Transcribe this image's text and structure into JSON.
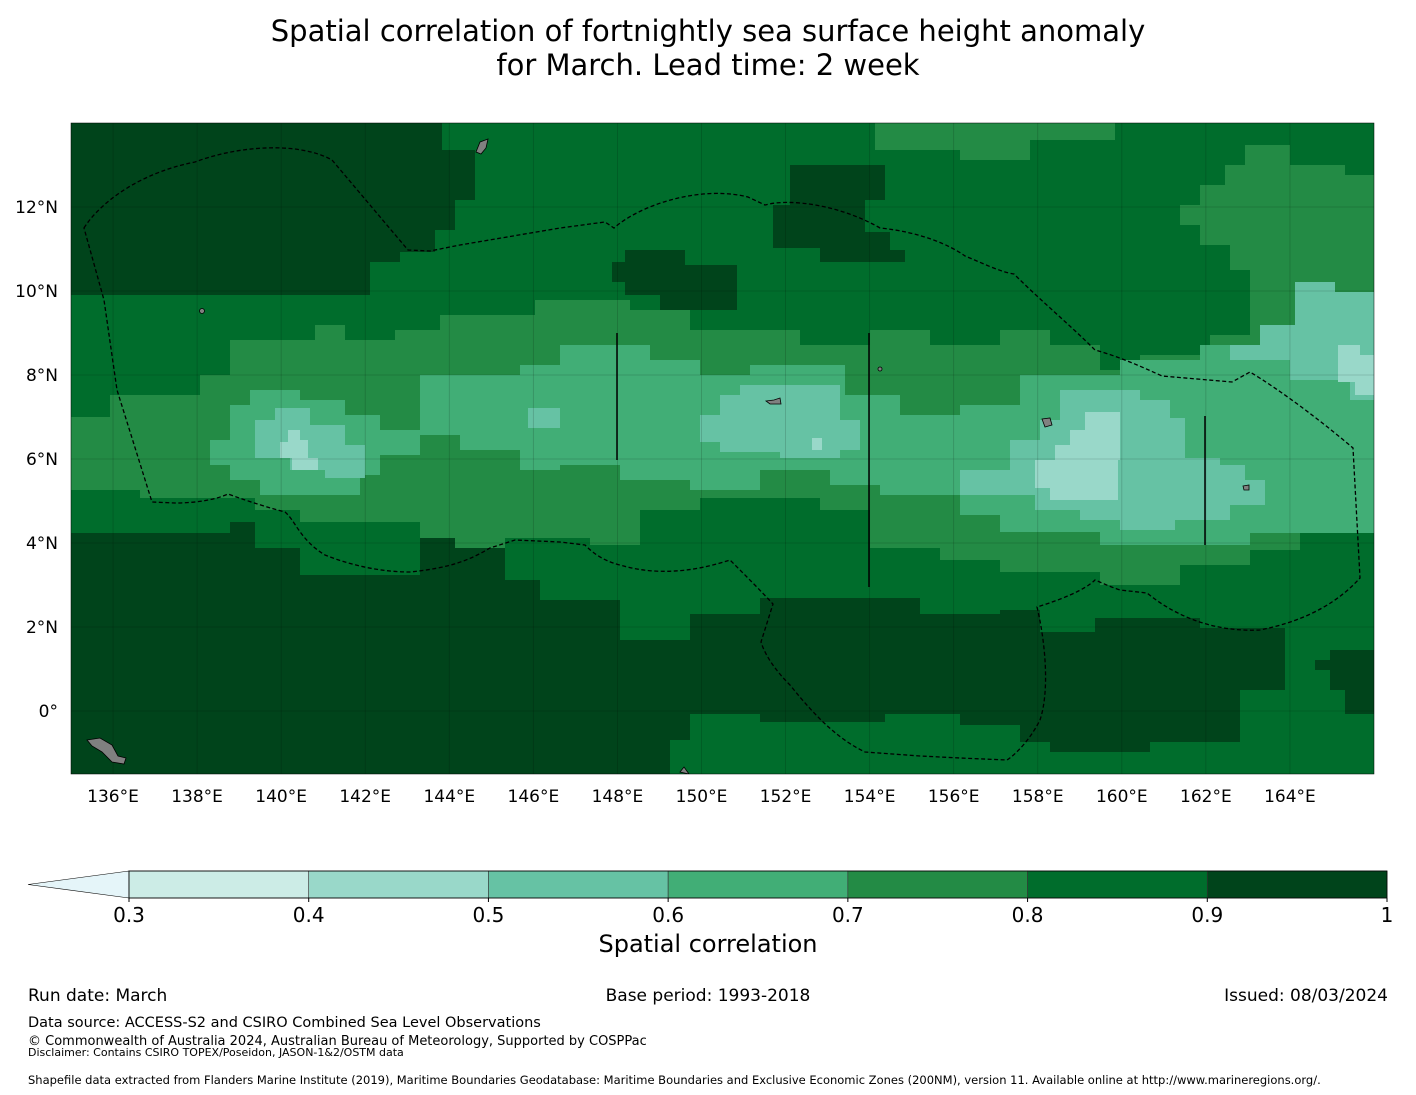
{
  "title": {
    "line1": "Spatial correlation of fortnightly sea surface height anomaly",
    "line2": "for March. Lead time: 2 week"
  },
  "map": {
    "lon_range": [
      135,
      166
    ],
    "lat_range": [
      -1.5,
      14
    ],
    "lat_ticks": [
      "12°N",
      "10°N",
      "8°N",
      "6°N",
      "4°N",
      "2°N",
      "0°"
    ],
    "lat_tick_values": [
      12,
      10,
      8,
      6,
      4,
      2,
      0
    ],
    "lon_ticks": [
      "136°E",
      "138°E",
      "140°E",
      "142°E",
      "144°E",
      "146°E",
      "148°E",
      "150°E",
      "152°E",
      "154°E",
      "156°E",
      "158°E",
      "160°E",
      "162°E",
      "164°E"
    ],
    "lon_tick_values": [
      136,
      138,
      140,
      142,
      144,
      146,
      148,
      150,
      152,
      154,
      156,
      158,
      160,
      162,
      164
    ],
    "correlation_zones": [
      {
        "level": 0.85,
        "description": "background band 0.8-0.9"
      },
      {
        "level": 0.95,
        "description": "northwest and south high-correlation region"
      },
      {
        "level": 0.75,
        "description": "equatorial band 0.7-0.8"
      },
      {
        "level": 0.65,
        "description": "inner band 0.6-0.7"
      },
      {
        "level": 0.55,
        "description": "core patches 0.5-0.6"
      },
      {
        "level": 0.45,
        "description": "minimum patches 0.4-0.5"
      }
    ]
  },
  "colorbar": {
    "ticks": [
      "0.3",
      "0.4",
      "0.5",
      "0.6",
      "0.7",
      "0.8",
      "0.9",
      "1"
    ],
    "tick_values": [
      0.3,
      0.4,
      0.5,
      0.6,
      0.7,
      0.8,
      0.9,
      1.0
    ],
    "colors": [
      "#ccece6",
      "#99d8c9",
      "#66c2a4",
      "#41ae76",
      "#238b45",
      "#006d2c",
      "#00441b"
    ],
    "under_color": "#e5f5f9",
    "label": "Spatial correlation"
  },
  "colors": {
    "land": "#808080",
    "boundary": "#000000"
  },
  "footer": {
    "run_date": "Run date: March",
    "base_period": "Base period: 1993-2018",
    "issued": "Issued: 08/03/2024",
    "data_source": "Data source: ACCESS-S2 and CSIRO Combined Sea Level Observations",
    "copyright": "© Commonwealth of Australia 2024, Australian Bureau of Meteorology, Supported by COSPPac",
    "disclaimer": "Disclaimer: Contains CSIRO TOPEX/Poseidon, JASON-1&2/OSTM data",
    "shapefile": "Shapefile data extracted from Flanders Marine Institute (2019), Maritime Boundaries Geodatabase: Maritime Boundaries and Exclusive Economic Zones (200NM), version 11. Available online at http://www.marineregions.org/."
  }
}
